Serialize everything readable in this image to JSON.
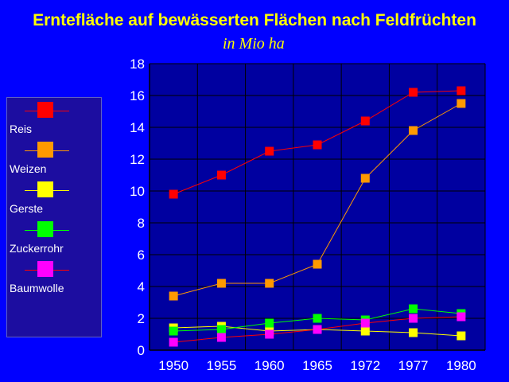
{
  "chart_data": {
    "type": "line",
    "title": "Erntefläche auf bewässerten Flächen nach Feldfrüchten",
    "subtitle": "in Mio ha",
    "xlabel": "",
    "ylabel": "",
    "categories": [
      "1950",
      "1955",
      "1960",
      "1965",
      "1972",
      "1977",
      "1980"
    ],
    "ylim": [
      0,
      18
    ],
    "yticks": [
      0,
      2,
      4,
      6,
      8,
      10,
      12,
      14,
      16,
      18
    ],
    "grid": true,
    "legend_position": "left",
    "series": [
      {
        "name": "Reis",
        "color": "#FF0000",
        "line_color": "#FF0000",
        "values": [
          9.8,
          11.0,
          12.5,
          12.9,
          14.4,
          16.2,
          16.3
        ]
      },
      {
        "name": "Weizen",
        "color": "#FF9900",
        "line_color": "#FF9900",
        "values": [
          3.4,
          4.2,
          4.2,
          5.4,
          10.8,
          13.8,
          15.5
        ]
      },
      {
        "name": "Gerste",
        "color": "#FFFF00",
        "line_color": "#FFFF00",
        "values": [
          1.4,
          1.5,
          1.2,
          1.3,
          1.2,
          1.1,
          0.9
        ]
      },
      {
        "name": "Zuckerrohr",
        "color": "#00FF00",
        "line_color": "#00FF00",
        "values": [
          1.2,
          1.3,
          1.7,
          2.0,
          1.9,
          2.6,
          2.3
        ]
      },
      {
        "name": "Baumwolle",
        "color": "#FF00FF",
        "line_color": "#FF0000",
        "values": [
          0.5,
          0.8,
          1.0,
          1.3,
          1.7,
          2.0,
          2.1
        ]
      }
    ]
  }
}
